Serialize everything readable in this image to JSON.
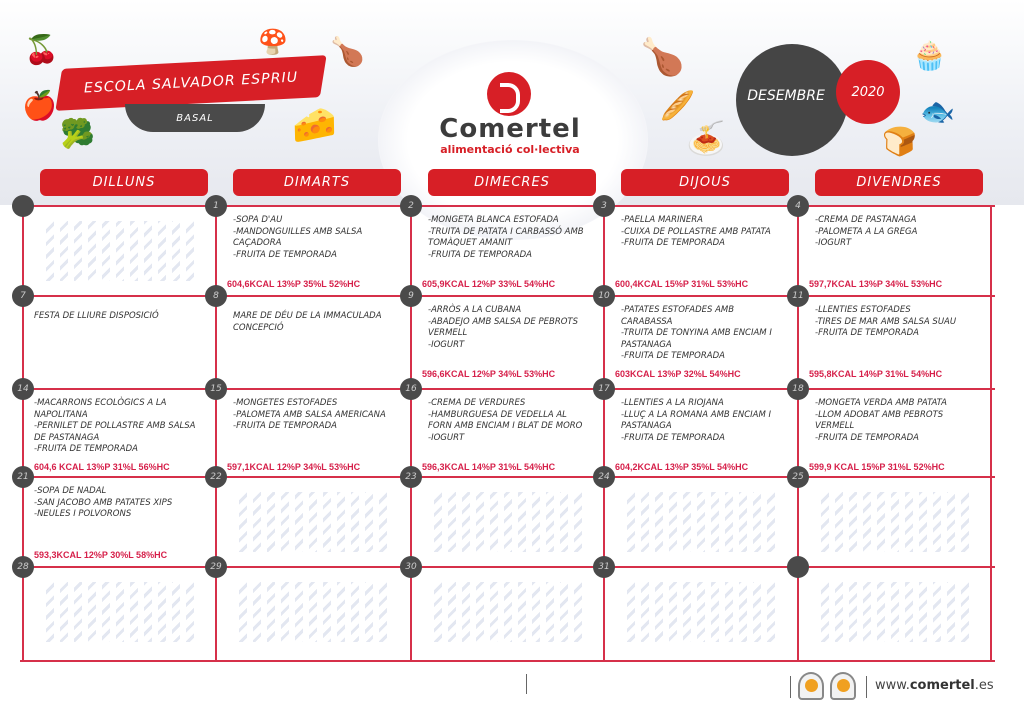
{
  "header": {
    "school": "ESCOLA SALVADOR ESPRIU",
    "menu_type": "BASAL",
    "brand": "Comertel",
    "tagline": "alimentació col·lectiva",
    "month": "DESEMBRE",
    "year": "2020"
  },
  "days": [
    "DILLUNS",
    "DIMARTS",
    "DIMECRES",
    "DIJOUS",
    "DIVENDRES"
  ],
  "weeks": [
    [
      {
        "date": "",
        "menu": "",
        "kcal": ""
      },
      {
        "date": "1",
        "menu": "-SOPA D'AU\n-MANDONGUILLES AMB SALSA CAÇADORA\n-FRUITA DE TEMPORADA",
        "kcal": "604,6KCAL 13%P 35%L 52%HC"
      },
      {
        "date": "2",
        "menu": "-MONGETA BLANCA ESTOFADA\n-TRUITA DE PATATA I CARBASSÓ AMB TOMÀQUET AMANIT\n-FRUITA DE TEMPORADA",
        "kcal": "605,9KCAL 12%P 33%L 54%HC"
      },
      {
        "date": "3",
        "menu": "-PAELLA MARINERA\n-CUIXA DE POLLASTRE AMB PATATA\n-FRUITA DE TEMPORADA",
        "kcal": "600,4KCAL 15%P 31%L 53%HC"
      },
      {
        "date": "4",
        "menu": "-CREMA DE PASTANAGA\n-PALOMETA A LA GREGA\n-IOGURT",
        "kcal": "597,7KCAL 13%P 34%L 53%HC"
      }
    ],
    [
      {
        "date": "7",
        "menu": "FESTA DE LLIURE DISPOSICIÓ",
        "kcal": ""
      },
      {
        "date": "8",
        "menu": "MARE DE DÉU DE LA IMMACULADA CONCEPCIÓ",
        "kcal": ""
      },
      {
        "date": "9",
        "menu": "-ARRÒS A LA CUBANA\n-ABADEJO AMB SALSA DE PEBROTS VERMELL\n-IOGURT",
        "kcal": "596,6KCAL 12%P 34%L 53%HC"
      },
      {
        "date": "10",
        "menu": "-PATATES ESTOFADES AMB CARABASSA\n-TRUITA DE TONYINA AMB ENCIAM I PASTANAGA\n-FRUITA DE TEMPORADA",
        "kcal": "603KCAL 13%P 32%L 54%HC"
      },
      {
        "date": "11",
        "menu": "-LLENTIES ESTOFADES\n-TIRES DE MAR AMB SALSA SUAU\n-FRUITA DE TEMPORADA",
        "kcal": "595,8KCAL 14%P 31%L 54%HC"
      }
    ],
    [
      {
        "date": "14",
        "menu": "-MACARRONS ECOLÒGICS A LA NAPOLITANA\n-PERNILET DE POLLASTRE AMB SALSA DE PASTANAGA\n-FRUITA DE TEMPORADA",
        "kcal": "604,6 KCAL 13%P 31%L 56%HC"
      },
      {
        "date": "15",
        "menu": "-MONGETES ESTOFADES\n-PALOMETA AMB SALSA AMERICANA\n-FRUITA DE TEMPORADA",
        "kcal": "597,1KCAL 12%P 34%L 53%HC"
      },
      {
        "date": "16",
        "menu": "-CREMA DE VERDURES\n-HAMBURGUESA DE VEDELLA AL FORN AMB ENCIAM I BLAT DE MORO\n-IOGURT",
        "kcal": "596,3KCAL 14%P 31%L 54%HC"
      },
      {
        "date": "17",
        "menu": "-LLENTIES A LA RIOJANA\n-LLUÇ A LA ROMANA AMB ENCIAM I PASTANAGA\n-FRUITA DE TEMPORADA",
        "kcal": "604,2KCAL 13%P 35%L 54%HC"
      },
      {
        "date": "18",
        "menu": "-MONGETA VERDA AMB PATATA\n-LLOM ADOBAT AMB PEBROTS VERMELL\n-FRUITA DE TEMPORADA",
        "kcal": "599,9 KCAL 15%P 31%L 52%HC"
      }
    ],
    [
      {
        "date": "21",
        "menu": "-SOPA DE NADAL\n-SAN JACOBO AMB PATATES XIPS\n-NEULES I POLVORONS",
        "kcal": "593,3KCAL 12%P 30%L 58%HC"
      },
      {
        "date": "22",
        "menu": "",
        "kcal": ""
      },
      {
        "date": "23",
        "menu": "",
        "kcal": ""
      },
      {
        "date": "24",
        "menu": "",
        "kcal": ""
      },
      {
        "date": "25",
        "menu": "",
        "kcal": ""
      }
    ],
    [
      {
        "date": "28",
        "menu": "",
        "kcal": ""
      },
      {
        "date": "29",
        "menu": "",
        "kcal": ""
      },
      {
        "date": "30",
        "menu": "",
        "kcal": ""
      },
      {
        "date": "31",
        "menu": "",
        "kcal": ""
      },
      {
        "date": "",
        "menu": "",
        "kcal": ""
      }
    ]
  ],
  "footer": {
    "url_prefix": "www.",
    "url_brand": "comertel",
    "url_suffix": ".es"
  },
  "colors": {
    "accent": "#d71f26",
    "dark": "#454545",
    "kcal": "#d6204a"
  }
}
